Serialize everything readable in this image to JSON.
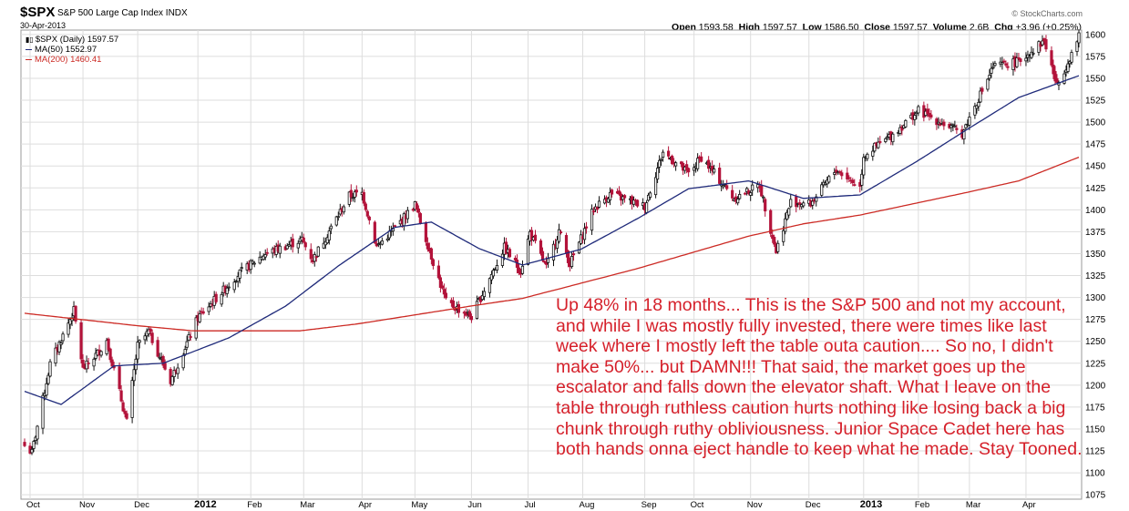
{
  "header": {
    "symbol": "$SPX",
    "name": "S&P 500 Large Cap Index INDX",
    "date": "30-Apr-2013",
    "source": "© StockCharts.com"
  },
  "ohlc": {
    "open_label": "Open",
    "open": "1593.58",
    "high_label": "High",
    "high": "1597.57",
    "low_label": "Low",
    "low": "1586.50",
    "close_label": "Close",
    "close": "1597.57",
    "volume_label": "Volume",
    "volume": "2.6B",
    "chg_label": "Chg",
    "chg": "+3.96 (+0.25%)"
  },
  "legend": {
    "price": "$SPX (Daily) 1597.57",
    "ma50": "MA(50) 1552.97",
    "ma200": "MA(200) 1460.41"
  },
  "annotation": "Up 48% in 18 months... This is the S&P 500 and not my account, and while I was mostly fully invested, there were times like last week where I mostly left the table outa caution.... So no, I didn't make 50%... but DAMN!!! That said, the market goes up the escalator and falls down the elevator shaft. What I leave on the table through ruthless caution hurts nothing like losing back a big chunk through ruthy obliviousness. Junior Space Cadet here has both hands onna eject handle to keep what he made. Stay Tooned.",
  "colors": {
    "up": "#111111",
    "down": "#b3133a",
    "ma50": "#1f2a7a",
    "ma200": "#cc2a24",
    "annotation": "#d5202a",
    "grid": "#dddddd"
  },
  "chart_data": {
    "type": "candlestick",
    "ylim": [
      1070,
      1605
    ],
    "y_ticks": [
      1075,
      1100,
      1125,
      1150,
      1175,
      1200,
      1225,
      1250,
      1275,
      1300,
      1325,
      1350,
      1375,
      1400,
      1425,
      1450,
      1475,
      1500,
      1525,
      1550,
      1575,
      1600
    ],
    "x_ticks": [
      {
        "label": "Oct",
        "date": "2011-10-03",
        "bold": false
      },
      {
        "label": "Nov",
        "date": "2011-11-01",
        "bold": false
      },
      {
        "label": "Dec",
        "date": "2011-12-01",
        "bold": false
      },
      {
        "label": "2012",
        "date": "2012-01-03",
        "bold": true
      },
      {
        "label": "Feb",
        "date": "2012-02-01",
        "bold": false
      },
      {
        "label": "Mar",
        "date": "2012-03-01",
        "bold": false
      },
      {
        "label": "Apr",
        "date": "2012-04-02",
        "bold": false
      },
      {
        "label": "May",
        "date": "2012-05-01",
        "bold": false
      },
      {
        "label": "Jun",
        "date": "2012-06-01",
        "bold": false
      },
      {
        "label": "Jul",
        "date": "2012-07-02",
        "bold": false
      },
      {
        "label": "Aug",
        "date": "2012-08-01",
        "bold": false
      },
      {
        "label": "Sep",
        "date": "2012-09-04",
        "bold": false
      },
      {
        "label": "Oct",
        "date": "2012-10-01",
        "bold": false
      },
      {
        "label": "Nov",
        "date": "2012-11-01",
        "bold": false
      },
      {
        "label": "Dec",
        "date": "2012-12-03",
        "bold": false
      },
      {
        "label": "2013",
        "date": "2013-01-02",
        "bold": true
      },
      {
        "label": "Feb",
        "date": "2013-02-01",
        "bold": false
      },
      {
        "label": "Mar",
        "date": "2013-03-01",
        "bold": false
      },
      {
        "label": "Apr",
        "date": "2013-04-01",
        "bold": false
      }
    ],
    "close_anchors": [
      [
        "2011-09-30",
        1131
      ],
      [
        "2011-10-04",
        1123
      ],
      [
        "2011-10-14",
        1224
      ],
      [
        "2011-10-27",
        1285
      ],
      [
        "2011-11-01",
        1218
      ],
      [
        "2011-11-10",
        1239
      ],
      [
        "2011-11-14",
        1251
      ],
      [
        "2011-11-25",
        1158
      ],
      [
        "2011-12-01",
        1245
      ],
      [
        "2011-12-07",
        1261
      ],
      [
        "2011-12-19",
        1205
      ],
      [
        "2011-12-30",
        1258
      ],
      [
        "2012-01-03",
        1277
      ],
      [
        "2012-01-25",
        1326
      ],
      [
        "2012-02-08",
        1349
      ],
      [
        "2012-02-29",
        1366
      ],
      [
        "2012-03-06",
        1343
      ],
      [
        "2012-03-26",
        1416
      ],
      [
        "2012-04-02",
        1419
      ],
      [
        "2012-04-10",
        1358
      ],
      [
        "2012-04-20",
        1379
      ],
      [
        "2012-05-01",
        1406
      ],
      [
        "2012-05-18",
        1295
      ],
      [
        "2012-06-01",
        1278
      ],
      [
        "2012-06-19",
        1357
      ],
      [
        "2012-06-28",
        1330
      ],
      [
        "2012-07-03",
        1374
      ],
      [
        "2012-07-12",
        1334
      ],
      [
        "2012-07-19",
        1376
      ],
      [
        "2012-07-25",
        1338
      ],
      [
        "2012-08-07",
        1401
      ],
      [
        "2012-08-16",
        1418
      ],
      [
        "2012-09-04",
        1404
      ],
      [
        "2012-09-14",
        1466
      ],
      [
        "2012-09-28",
        1441
      ],
      [
        "2012-10-05",
        1460
      ],
      [
        "2012-10-23",
        1413
      ],
      [
        "2012-11-06",
        1428
      ],
      [
        "2012-11-15",
        1353
      ],
      [
        "2012-11-23",
        1409
      ],
      [
        "2012-12-04",
        1407
      ],
      [
        "2012-12-18",
        1446
      ],
      [
        "2012-12-31",
        1426
      ],
      [
        "2013-01-02",
        1462
      ],
      [
        "2013-01-18",
        1486
      ],
      [
        "2013-02-01",
        1513
      ],
      [
        "2013-02-25",
        1487
      ],
      [
        "2013-03-14",
        1563
      ],
      [
        "2013-03-28",
        1569
      ],
      [
        "2013-04-11",
        1593
      ],
      [
        "2013-04-18",
        1541
      ],
      [
        "2013-04-30",
        1597
      ]
    ],
    "ma50_anchors": [
      [
        "2011-09-30",
        1193
      ],
      [
        "2011-10-20",
        1178
      ],
      [
        "2011-11-18",
        1222
      ],
      [
        "2011-12-15",
        1225
      ],
      [
        "2012-01-20",
        1254
      ],
      [
        "2012-02-20",
        1290
      ],
      [
        "2012-03-20",
        1336
      ],
      [
        "2012-04-20",
        1380
      ],
      [
        "2012-05-10",
        1386
      ],
      [
        "2012-06-05",
        1356
      ],
      [
        "2012-06-29",
        1337
      ],
      [
        "2012-07-31",
        1355
      ],
      [
        "2012-08-31",
        1390
      ],
      [
        "2012-09-28",
        1424
      ],
      [
        "2012-10-31",
        1433
      ],
      [
        "2012-11-30",
        1413
      ],
      [
        "2012-12-31",
        1417
      ],
      [
        "2013-01-31",
        1455
      ],
      [
        "2013-02-28",
        1492
      ],
      [
        "2013-03-28",
        1528
      ],
      [
        "2013-04-30",
        1553
      ]
    ],
    "ma200_anchors": [
      [
        "2011-09-30",
        1282
      ],
      [
        "2011-11-30",
        1268
      ],
      [
        "2011-12-31",
        1262
      ],
      [
        "2012-02-28",
        1262
      ],
      [
        "2012-03-31",
        1270
      ],
      [
        "2012-05-31",
        1290
      ],
      [
        "2012-06-29",
        1299
      ],
      [
        "2012-08-31",
        1333
      ],
      [
        "2012-10-31",
        1370
      ],
      [
        "2012-11-30",
        1384
      ],
      [
        "2012-12-31",
        1394
      ],
      [
        "2013-02-28",
        1420
      ],
      [
        "2013-03-28",
        1433
      ],
      [
        "2013-04-30",
        1460
      ]
    ],
    "date_range": [
      "2011-09-30",
      "2013-04-30"
    ]
  }
}
